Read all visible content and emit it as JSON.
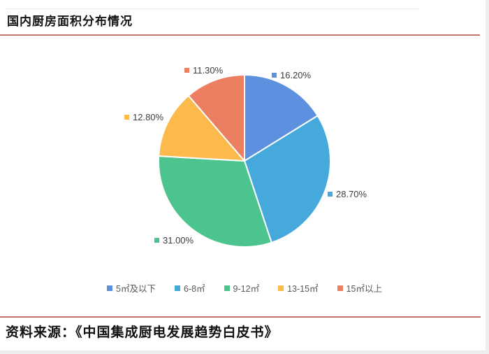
{
  "page": {
    "title": "国内厨房面积分布情况",
    "source": "资料来源：《中国集成厨电发展趋势白皮书》"
  },
  "colors": {
    "accent_line": "#bd6561",
    "label_text": "#3d3d3d",
    "legend_text": "#595959"
  },
  "chart_data": {
    "type": "pie",
    "title": "国内厨房面积分布情况",
    "start_angle_deg": -90,
    "direction": "clockwise",
    "legend_position": "bottom",
    "slices": [
      {
        "label": "5㎡及以下",
        "value": 16.2,
        "display": "16.20%",
        "color": "#5E90E0"
      },
      {
        "label": "6-8㎡",
        "value": 28.7,
        "display": "28.70%",
        "color": "#45A9DC"
      },
      {
        "label": "9-12㎡",
        "value": 31.0,
        "display": "31.00%",
        "color": "#4CC48E"
      },
      {
        "label": "13-15㎡",
        "value": 12.8,
        "display": "12.80%",
        "color": "#FCBA4D"
      },
      {
        "label": "15㎡以上",
        "value": 11.3,
        "display": "11.30%",
        "color": "#EC7E62"
      }
    ]
  }
}
